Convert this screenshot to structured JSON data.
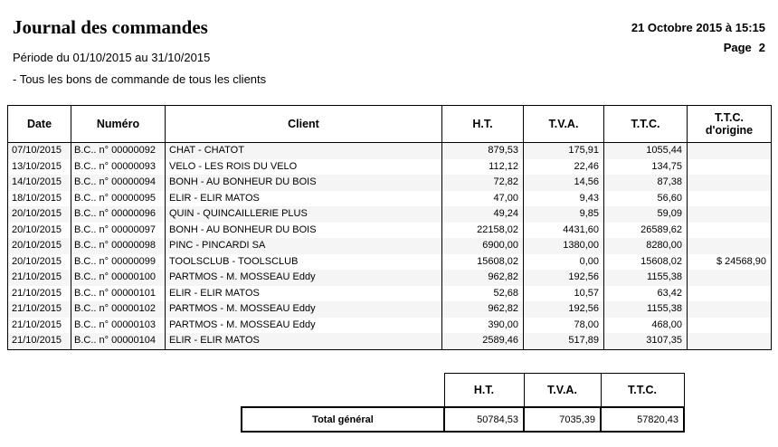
{
  "page": {
    "title": "Journal des commandes",
    "datetime": "21 Octobre 2015 à 15:15",
    "page_label": "Page",
    "page_number": "2",
    "period": "Période du 01/10/2015 au 31/10/2015",
    "filter": "- Tous les bons de commande de tous les clients"
  },
  "table": {
    "headers": [
      "Date",
      "Numéro",
      "Client",
      "H.T.",
      "T.V.A.",
      "T.T.C.",
      "T.T.C. d'origine"
    ],
    "rows": [
      {
        "date": "07/10/2015",
        "numero": "B.C.. n° 00000092",
        "client": "CHAT - CHATOT",
        "ht": "879,53",
        "tva": "175,91",
        "ttc": "1055,44",
        "ttc_origine": ""
      },
      {
        "date": "13/10/2015",
        "numero": "B.C.. n° 00000093",
        "client": "VELO - LES ROIS DU VELO",
        "ht": "112,12",
        "tva": "22,46",
        "ttc": "134,75",
        "ttc_origine": ""
      },
      {
        "date": "14/10/2015",
        "numero": "B.C.. n° 00000094",
        "client": "BONH - AU BONHEUR DU BOIS",
        "ht": "72,82",
        "tva": "14,56",
        "ttc": "87,38",
        "ttc_origine": ""
      },
      {
        "date": "18/10/2015",
        "numero": "B.C.. n° 00000095",
        "client": "ELIR - ELIR MATOS",
        "ht": "47,00",
        "tva": "9,43",
        "ttc": "56,60",
        "ttc_origine": ""
      },
      {
        "date": "20/10/2015",
        "numero": "B.C.. n° 00000096",
        "client": "QUIN - QUINCAILLERIE PLUS",
        "ht": "49,24",
        "tva": "9,85",
        "ttc": "59,09",
        "ttc_origine": ""
      },
      {
        "date": "20/10/2015",
        "numero": "B.C.. n° 00000097",
        "client": "BONH - AU BONHEUR DU BOIS",
        "ht": "22158,02",
        "tva": "4431,60",
        "ttc": "26589,62",
        "ttc_origine": ""
      },
      {
        "date": "20/10/2015",
        "numero": "B.C.. n° 00000098",
        "client": "PINC - PINCARDI SA",
        "ht": "6900,00",
        "tva": "1380,00",
        "ttc": "8280,00",
        "ttc_origine": ""
      },
      {
        "date": "20/10/2015",
        "numero": "B.C.. n° 00000099",
        "client": "TOOLSCLUB - TOOLSCLUB",
        "ht": "15608,02",
        "tva": "0,00",
        "ttc": "15608,02",
        "ttc_origine": "$ 24568,90"
      },
      {
        "date": "21/10/2015",
        "numero": "B.C.. n° 00000100",
        "client": "PARTMOS - M. MOSSEAU Eddy",
        "ht": "962,82",
        "tva": "192,56",
        "ttc": "1155,38",
        "ttc_origine": ""
      },
      {
        "date": "21/10/2015",
        "numero": "B.C.. n° 00000101",
        "client": "ELIR - ELIR MATOS",
        "ht": "52,68",
        "tva": "10,57",
        "ttc": "63,42",
        "ttc_origine": ""
      },
      {
        "date": "21/10/2015",
        "numero": "B.C.. n° 00000102",
        "client": "PARTMOS - M. MOSSEAU Eddy",
        "ht": "962,82",
        "tva": "192,56",
        "ttc": "1155,38",
        "ttc_origine": ""
      },
      {
        "date": "21/10/2015",
        "numero": "B.C.. n° 00000103",
        "client": "PARTMOS - M. MOSSEAU Eddy",
        "ht": "390,00",
        "tva": "78,00",
        "ttc": "468,00",
        "ttc_origine": ""
      },
      {
        "date": "21/10/2015",
        "numero": "B.C.. n° 00000104",
        "client": "ELIR - ELIR MATOS",
        "ht": "2589,46",
        "tva": "517,89",
        "ttc": "3107,35",
        "ttc_origine": ""
      }
    ]
  },
  "totals": {
    "headers": [
      "H.T.",
      "T.V.A.",
      "T.T.C."
    ],
    "label": "Total général",
    "ht": "50784,53",
    "tva": "7035,39",
    "ttc": "57820,43"
  },
  "colors": {
    "stripe": "#f5f5f5",
    "border": "#000000",
    "text": "#000000"
  }
}
